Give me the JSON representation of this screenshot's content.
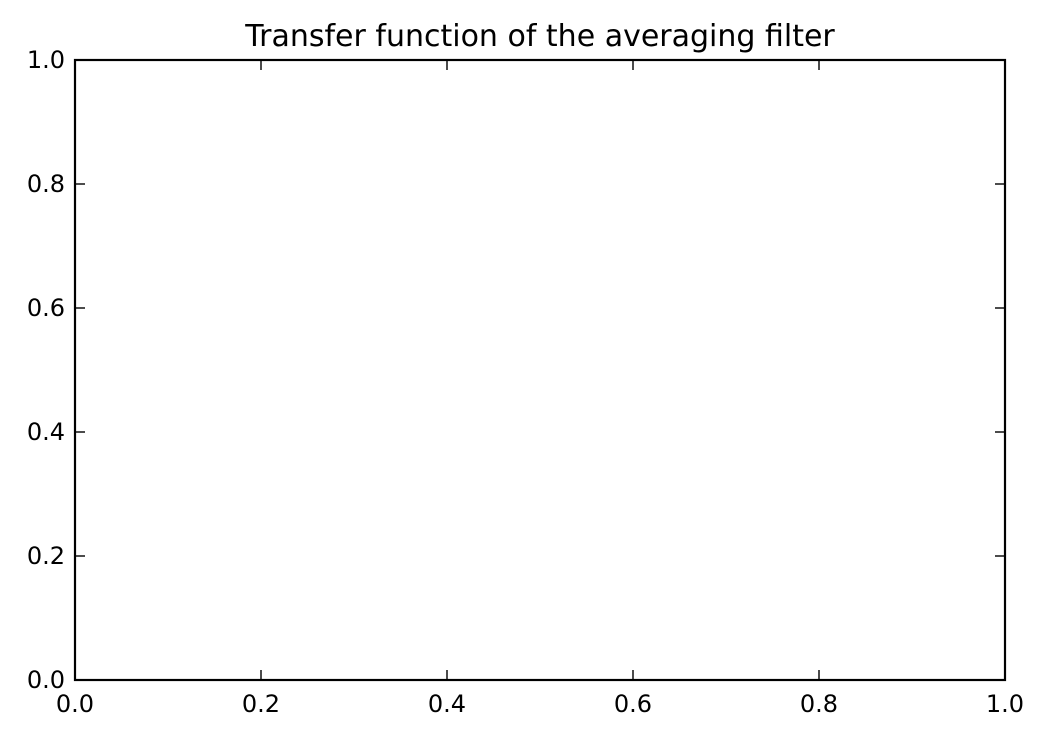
{
  "chart_data": {
    "type": "line",
    "title": "Transfer function of the averaging filter",
    "xlabel": "",
    "ylabel": "",
    "xlim": [
      0.0,
      1.0
    ],
    "ylim": [
      0.0,
      1.0
    ],
    "x_ticks": [
      0.0,
      0.2,
      0.4,
      0.6,
      0.8,
      1.0
    ],
    "y_ticks": [
      0.0,
      0.2,
      0.4,
      0.6,
      0.8,
      1.0
    ],
    "x_tick_labels": [
      "0.0",
      "0.2",
      "0.4",
      "0.6",
      "0.8",
      "1.0"
    ],
    "y_tick_labels": [
      "0.0",
      "0.2",
      "0.4",
      "0.6",
      "0.8",
      "1.0"
    ],
    "grid": false,
    "series": [],
    "colors": {
      "background": "#ffffff",
      "axes": "#000000",
      "text": "#000000"
    }
  }
}
